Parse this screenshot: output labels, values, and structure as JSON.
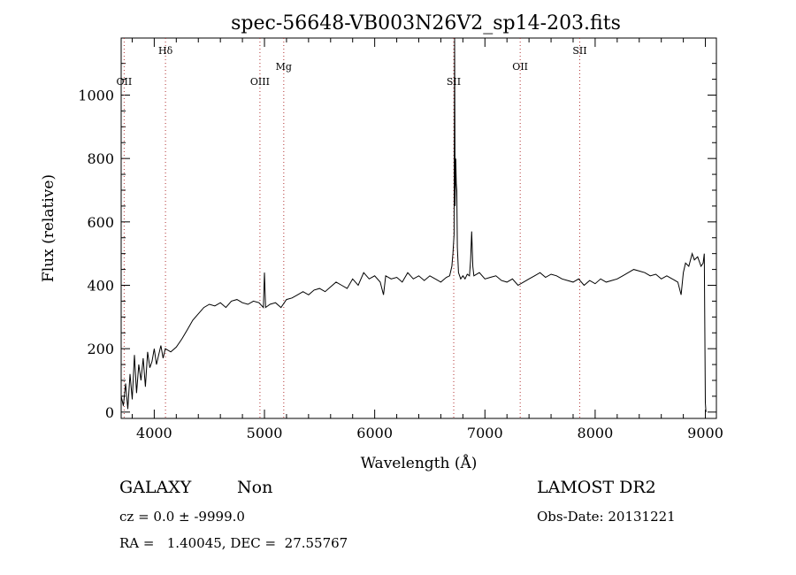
{
  "chart_data": {
    "type": "line",
    "title": "spec-56648-VB003N26V2_sp14-203.fits",
    "xlabel": "Wavelength (Å)",
    "ylabel": "Flux (relative)",
    "xlim": [
      3700,
      9100
    ],
    "ylim": [
      -20,
      1180
    ],
    "xticks": [
      4000,
      5000,
      6000,
      7000,
      8000,
      9000
    ],
    "yticks": [
      0,
      200,
      400,
      600,
      800,
      1000
    ],
    "grid": false,
    "line_color": "#000000",
    "marker_color": "#b03030",
    "line_markers": [
      {
        "label": "OII",
        "x": 3727,
        "label_level": "low"
      },
      {
        "label": "Hδ",
        "x": 4102,
        "label_level": "high"
      },
      {
        "label": "OIII",
        "x": 4959,
        "label_level": "low"
      },
      {
        "label": "Mg",
        "x": 5175,
        "label_level": "mid"
      },
      {
        "label": "SII",
        "x": 6717,
        "label_level": "low"
      },
      {
        "label": "OII",
        "x": 7320,
        "label_level": "mid"
      },
      {
        "label": "SII",
        "x": 7860,
        "label_level": "high"
      }
    ],
    "series": [
      {
        "x": [
          3700,
          3720,
          3740,
          3760,
          3780,
          3800,
          3820,
          3840,
          3860,
          3880,
          3900,
          3920,
          3940,
          3960,
          3980,
          4000,
          4020,
          4040,
          4060,
          4080,
          4100,
          4150,
          4200,
          4250,
          4300,
          4350,
          4400,
          4450,
          4500,
          4550,
          4600,
          4650,
          4700,
          4750,
          4800,
          4850,
          4900,
          4950,
          4990,
          5000,
          5010,
          5050,
          5100,
          5150,
          5200,
          5250,
          5300,
          5350,
          5400,
          5450,
          5500,
          5550,
          5600,
          5650,
          5700,
          5750,
          5800,
          5850,
          5900,
          5950,
          6000,
          6050,
          6080,
          6100,
          6150,
          6200,
          6250,
          6300,
          6350,
          6400,
          6450,
          6500,
          6550,
          6600,
          6650,
          6680,
          6700,
          6710,
          6720,
          6725,
          6730,
          6735,
          6740,
          6745,
          6750,
          6760,
          6780,
          6800,
          6820,
          6840,
          6860,
          6870,
          6880,
          6890,
          6900,
          6950,
          7000,
          7050,
          7100,
          7150,
          7200,
          7250,
          7300,
          7350,
          7400,
          7450,
          7500,
          7550,
          7600,
          7650,
          7700,
          7750,
          7800,
          7850,
          7900,
          7950,
          8000,
          8050,
          8100,
          8150,
          8200,
          8250,
          8300,
          8350,
          8400,
          8450,
          8500,
          8550,
          8600,
          8650,
          8700,
          8750,
          8780,
          8800,
          8820,
          8850,
          8880,
          8900,
          8930,
          8960,
          8980,
          8990,
          9000,
          9005
        ],
        "y": [
          50,
          20,
          90,
          10,
          120,
          40,
          180,
          60,
          150,
          100,
          170,
          80,
          190,
          140,
          160,
          200,
          150,
          180,
          210,
          170,
          200,
          190,
          205,
          230,
          260,
          290,
          310,
          330,
          340,
          335,
          345,
          330,
          350,
          355,
          345,
          340,
          350,
          345,
          330,
          440,
          330,
          340,
          345,
          330,
          355,
          360,
          370,
          380,
          370,
          385,
          390,
          380,
          395,
          410,
          400,
          390,
          420,
          400,
          440,
          420,
          430,
          410,
          370,
          430,
          420,
          425,
          410,
          440,
          420,
          430,
          415,
          430,
          420,
          410,
          425,
          430,
          460,
          500,
          560,
          1180,
          650,
          800,
          720,
          700,
          520,
          440,
          420,
          430,
          420,
          435,
          430,
          480,
          570,
          460,
          430,
          440,
          420,
          425,
          430,
          415,
          410,
          420,
          400,
          410,
          420,
          430,
          440,
          425,
          435,
          430,
          420,
          415,
          410,
          420,
          400,
          415,
          405,
          420,
          410,
          415,
          420,
          430,
          440,
          450,
          445,
          440,
          430,
          435,
          420,
          430,
          420,
          410,
          370,
          440,
          470,
          460,
          500,
          480,
          490,
          460,
          470,
          500,
          30,
          0
        ]
      }
    ]
  },
  "info": {
    "object_class": "GALAXY",
    "subclass": "Non",
    "survey": "LAMOST DR2",
    "cz_line": "cz = 0.0 ± -9999.0",
    "obs_date": "Obs-Date: 20131221",
    "radec": "RA =   1.40045, DEC =  27.55767"
  }
}
